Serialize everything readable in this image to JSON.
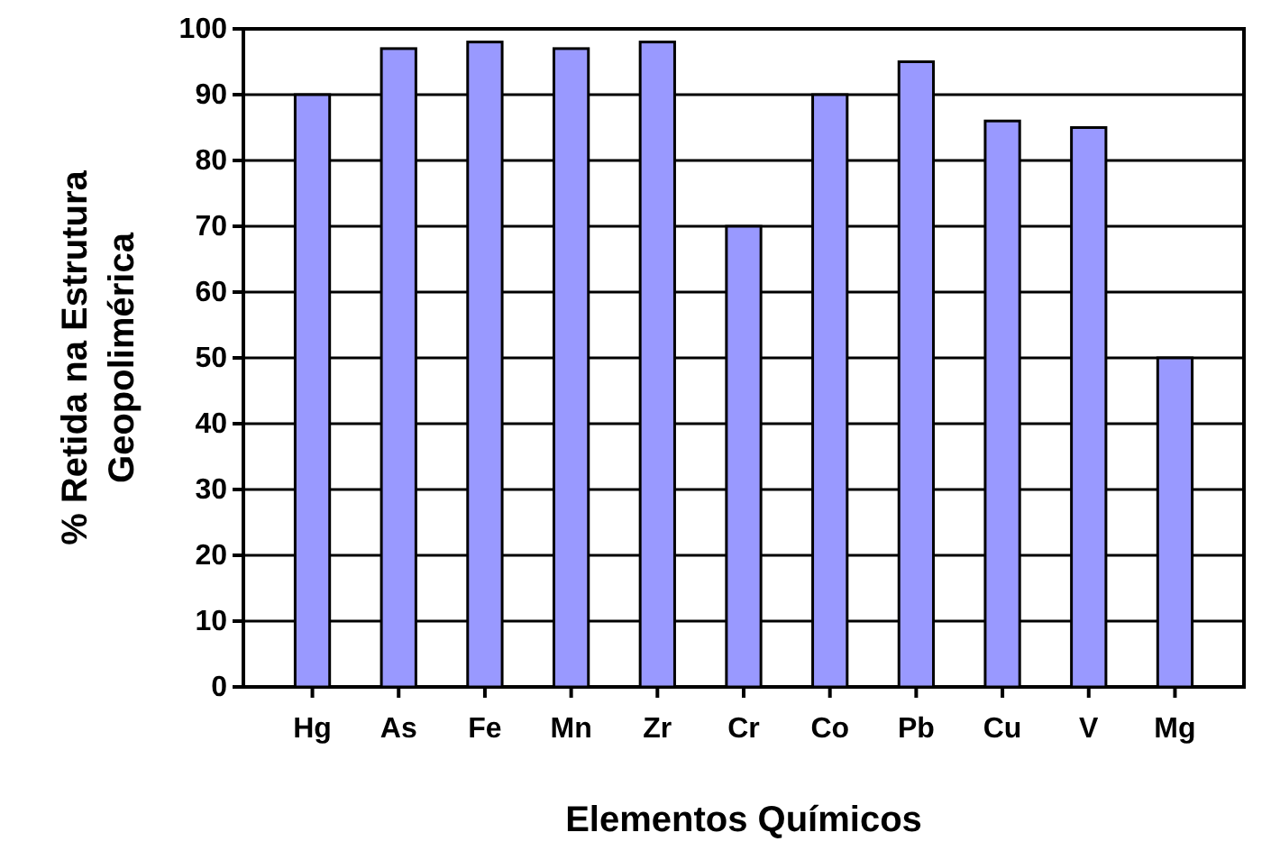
{
  "chart_data": {
    "type": "bar",
    "xlabel": "Elementos Químicos",
    "ylabel": "% Retida na Estrutura Geopolimérica",
    "categories": [
      "Hg",
      "As",
      "Fe",
      "Mn",
      "Zr",
      "Cr",
      "Co",
      "Pb",
      "Cu",
      "V",
      "Mg"
    ],
    "values": [
      90,
      97,
      98,
      97,
      98,
      70,
      90,
      95,
      86,
      85,
      50
    ],
    "color": "#9999ff",
    "ylim": [
      0,
      100
    ],
    "yticks": [
      0,
      10,
      20,
      30,
      40,
      50,
      60,
      70,
      80,
      90,
      100
    ],
    "grid": "y"
  }
}
